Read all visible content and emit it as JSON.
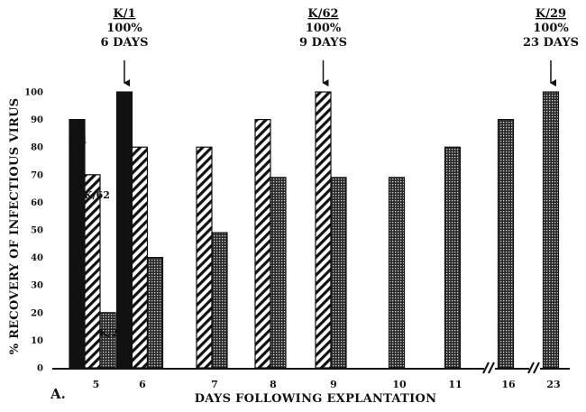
{
  "chart_data": {
    "type": "bar",
    "panel_label": "A.",
    "xlabel": "DAYS FOLLOWING EXPLANTATION",
    "ylabel": "% RECOVERY OF INFECTIOUS VIRUS",
    "ylim": [
      0,
      100
    ],
    "yticks": [
      0,
      10,
      20,
      30,
      40,
      50,
      60,
      70,
      80,
      90,
      100
    ],
    "categories": [
      "5",
      "6",
      "7",
      "8",
      "9",
      "10",
      "11",
      "16",
      "23"
    ],
    "axis_breaks_before": [
      "16",
      "23"
    ],
    "series": [
      {
        "name": "K/1",
        "pattern": "solid",
        "values": [
          90,
          100,
          null,
          null,
          null,
          null,
          null,
          null,
          null
        ]
      },
      {
        "name": "K/62",
        "pattern": "hatched",
        "values": [
          70,
          80,
          80,
          90,
          100,
          null,
          null,
          null,
          null
        ]
      },
      {
        "name": "K/29",
        "pattern": "dotted",
        "values": [
          20,
          40,
          49,
          69,
          69,
          69,
          80,
          90,
          100
        ]
      }
    ],
    "series_tags": [
      {
        "text": "K/1",
        "category": "5"
      },
      {
        "text": "K/62",
        "category": "5"
      },
      {
        "text": "K/29",
        "category": "5"
      }
    ],
    "annotations": [
      {
        "category": "6",
        "lines": [
          "K/1",
          "100%",
          "6 DAYS"
        ]
      },
      {
        "category": "9",
        "lines": [
          "K/62",
          "100%",
          "9 DAYS"
        ]
      },
      {
        "category": "23",
        "lines": [
          "K/29",
          "100%",
          "23 DAYS"
        ]
      }
    ],
    "grid": false,
    "legend": "none"
  }
}
